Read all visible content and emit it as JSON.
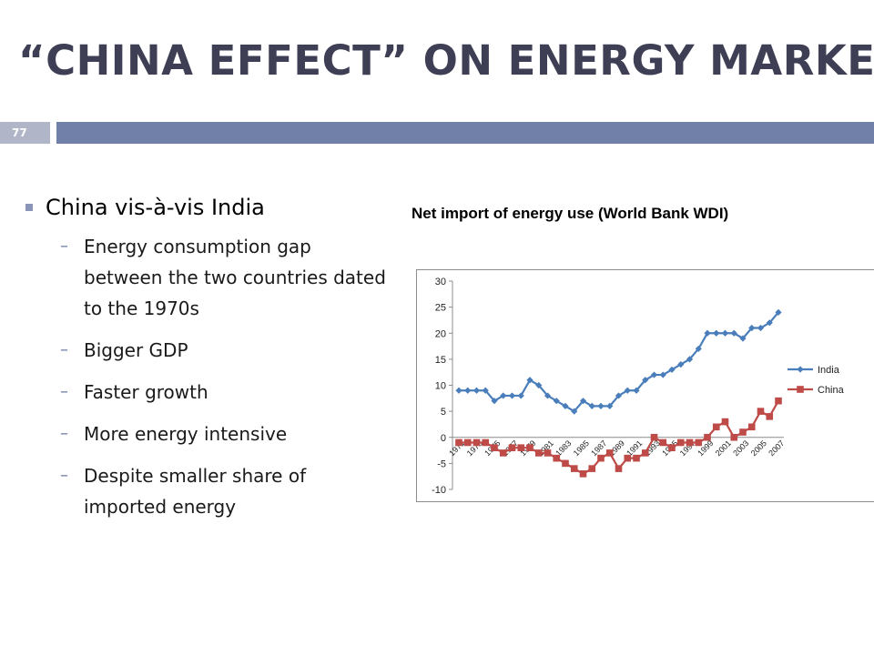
{
  "slide": {
    "title": "“CHINA EFFECT”  ON ENERGY MARKET",
    "page_number": "77"
  },
  "bullets": {
    "main": "China vis-à-vis India",
    "sub": [
      "Energy consumption gap between the two countries dated to the 1970s",
      "Bigger GDP",
      "Faster growth",
      "More energy intensive",
      "Despite smaller share of imported energy"
    ]
  },
  "chart_caption": "Net import of energy use (World Bank WDI)",
  "chart_data": {
    "type": "line",
    "x": [
      1971,
      1972,
      1973,
      1974,
      1975,
      1976,
      1977,
      1978,
      1979,
      1980,
      1981,
      1982,
      1983,
      1984,
      1985,
      1986,
      1987,
      1988,
      1989,
      1990,
      1991,
      1992,
      1993,
      1994,
      1995,
      1996,
      1997,
      1998,
      1999,
      2000,
      2001,
      2002,
      2003,
      2004,
      2005,
      2006,
      2007
    ],
    "x_tick_labels": [
      "1971",
      "1973",
      "1975",
      "1977",
      "1979",
      "1981",
      "1983",
      "1985",
      "1987",
      "1989",
      "1991",
      "1993",
      "1995",
      "1997",
      "1999",
      "2001",
      "2003",
      "2005",
      "2007"
    ],
    "series": [
      {
        "name": "India",
        "color": "#4a7ebb",
        "marker": "diamond",
        "values": [
          9,
          9,
          9,
          9,
          7,
          8,
          8,
          8,
          11,
          10,
          8,
          7,
          6,
          5,
          7,
          6,
          6,
          6,
          8,
          9,
          9,
          11,
          12,
          12,
          13,
          14,
          15,
          17,
          20,
          20,
          20,
          20,
          19,
          21,
          21,
          22,
          24
        ]
      },
      {
        "name": "China",
        "color": "#be4b48",
        "marker": "square",
        "values": [
          -1,
          -1,
          -1,
          -1,
          -2,
          -3,
          -2,
          -2,
          -2,
          -3,
          -3,
          -4,
          -5,
          -6,
          -7,
          -6,
          -4,
          -3,
          -6,
          -4,
          -4,
          -3,
          0,
          -1,
          -2,
          -1,
          -1,
          -1,
          0,
          2,
          3,
          0,
          1,
          2,
          5,
          4,
          7
        ]
      }
    ],
    "ylim": [
      -10,
      30
    ],
    "yticks": [
      -10,
      -5,
      0,
      5,
      10,
      15,
      20,
      25,
      30
    ],
    "grid": false,
    "legend_position": "right"
  }
}
